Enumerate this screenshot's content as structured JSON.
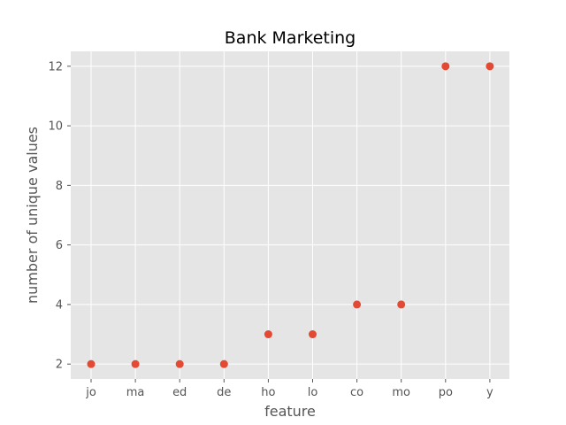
{
  "chart_data": {
    "type": "scatter",
    "title": "Bank Marketing",
    "xlabel": "feature",
    "ylabel": "number of unique values",
    "categories": [
      "jo",
      "ma",
      "ed",
      "de",
      "ho",
      "lo",
      "co",
      "mo",
      "po",
      "y"
    ],
    "values": [
      2,
      2,
      2,
      2,
      3,
      3,
      4,
      4,
      12,
      12
    ],
    "yticks": [
      2,
      4,
      6,
      8,
      10,
      12
    ],
    "ylim": [
      1.5,
      12.5
    ],
    "grid": true,
    "legend": "none"
  },
  "colors": {
    "plot_background": "#e5e5e5",
    "grid": "#ffffff",
    "marker": "#e24a33",
    "tick_text": "#555555"
  }
}
